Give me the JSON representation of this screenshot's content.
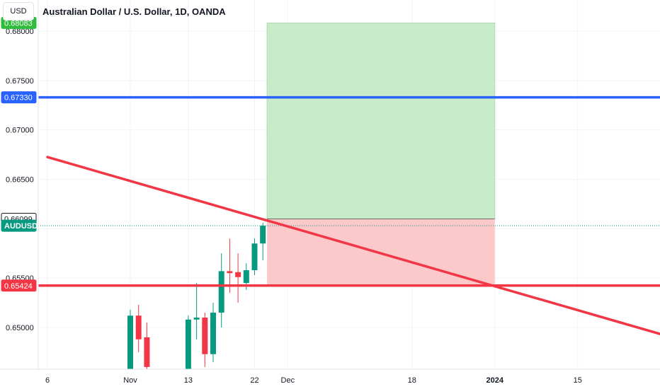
{
  "header": {
    "currency": "USD",
    "title": "Australian Dollar / U.S. Dollar, 1D, OANDA"
  },
  "chart_data": {
    "type": "candlestick",
    "symbol": "AUDUSD",
    "y_axis": {
      "ylim": [
        0.6456,
        0.6815
      ],
      "ticks": [
        "0.65000",
        "0.65500",
        "0.66000",
        "0.66500",
        "0.67000",
        "0.67500",
        "0.68000"
      ],
      "tick_values": [
        0.65,
        0.655,
        0.66,
        0.665,
        0.67,
        0.675,
        0.68
      ]
    },
    "x_axis": {
      "ticks": [
        "6",
        "Nov",
        "13",
        "22",
        "Dec",
        "18",
        "2024",
        "15"
      ],
      "tick_bars": [
        -10,
        0,
        7,
        15,
        19,
        34,
        44,
        54
      ],
      "bold_ticks": [
        "2024"
      ]
    },
    "candles": [
      {
        "o": 0.6455,
        "h": 0.6518,
        "l": 0.6445,
        "c": 0.6512
      },
      {
        "o": 0.6512,
        "h": 0.6523,
        "l": 0.6475,
        "c": 0.6488
      },
      {
        "o": 0.649,
        "h": 0.6505,
        "l": 0.6455,
        "c": 0.646
      },
      {},
      {},
      {},
      {},
      {
        "o": 0.6455,
        "h": 0.6512,
        "l": 0.6445,
        "c": 0.6508
      },
      {
        "o": 0.6508,
        "h": 0.6545,
        "l": 0.6488,
        "c": 0.651
      },
      {
        "o": 0.651,
        "h": 0.6515,
        "l": 0.646,
        "c": 0.6473
      },
      {
        "o": 0.6473,
        "h": 0.6525,
        "l": 0.6465,
        "c": 0.6515
      },
      {
        "o": 0.6515,
        "h": 0.6575,
        "l": 0.65,
        "c": 0.6557
      },
      {
        "o": 0.6557,
        "h": 0.659,
        "l": 0.6535,
        "c": 0.6555
      },
      {
        "o": 0.6556,
        "h": 0.6575,
        "l": 0.6525,
        "c": 0.6551
      },
      {
        "o": 0.6545,
        "h": 0.6565,
        "l": 0.6538,
        "c": 0.6558
      },
      {
        "o": 0.6558,
        "h": 0.659,
        "l": 0.6553,
        "c": 0.6585
      },
      {
        "o": 0.6585,
        "h": 0.6606,
        "l": 0.6568,
        "c": 0.6603
      }
    ],
    "horizontal_lines": [
      {
        "price": 0.6733,
        "label": "0.67330",
        "color": "#2962ff"
      },
      {
        "price": 0.65424,
        "label": "0.65424",
        "color": "#f23645"
      }
    ],
    "trendline": {
      "from": {
        "bar": -10,
        "price": 0.66725
      },
      "to": {
        "bar": 73,
        "price": 0.64715
      },
      "color": "#f23645"
    },
    "position": {
      "start_bar": 16.5,
      "end_bar": 44,
      "entry": 0.66099,
      "stop": 0.65424,
      "target": 0.68083,
      "profit_color": "#c8ebc9",
      "loss_color": "#fcc9cb"
    },
    "price_labels": [
      {
        "text": "0.66099",
        "price": 0.66099,
        "bg": "#ffffff",
        "fg": "#131722",
        "border": "#131722"
      },
      {
        "text": "AUDUSD",
        "price": 0.6603,
        "bg": "#089981",
        "fg": "#ffffff",
        "border": "#089981"
      },
      {
        "text": "0.68083",
        "price": 0.68083,
        "bg": "#2ebd3b",
        "fg": "#ffffff",
        "border": "#2ebd3b"
      }
    ],
    "last_price": 0.6603,
    "colors": {
      "up": "#089981",
      "down": "#f23645",
      "grid": "#f0f3fa",
      "axis_text": "#131722"
    }
  }
}
